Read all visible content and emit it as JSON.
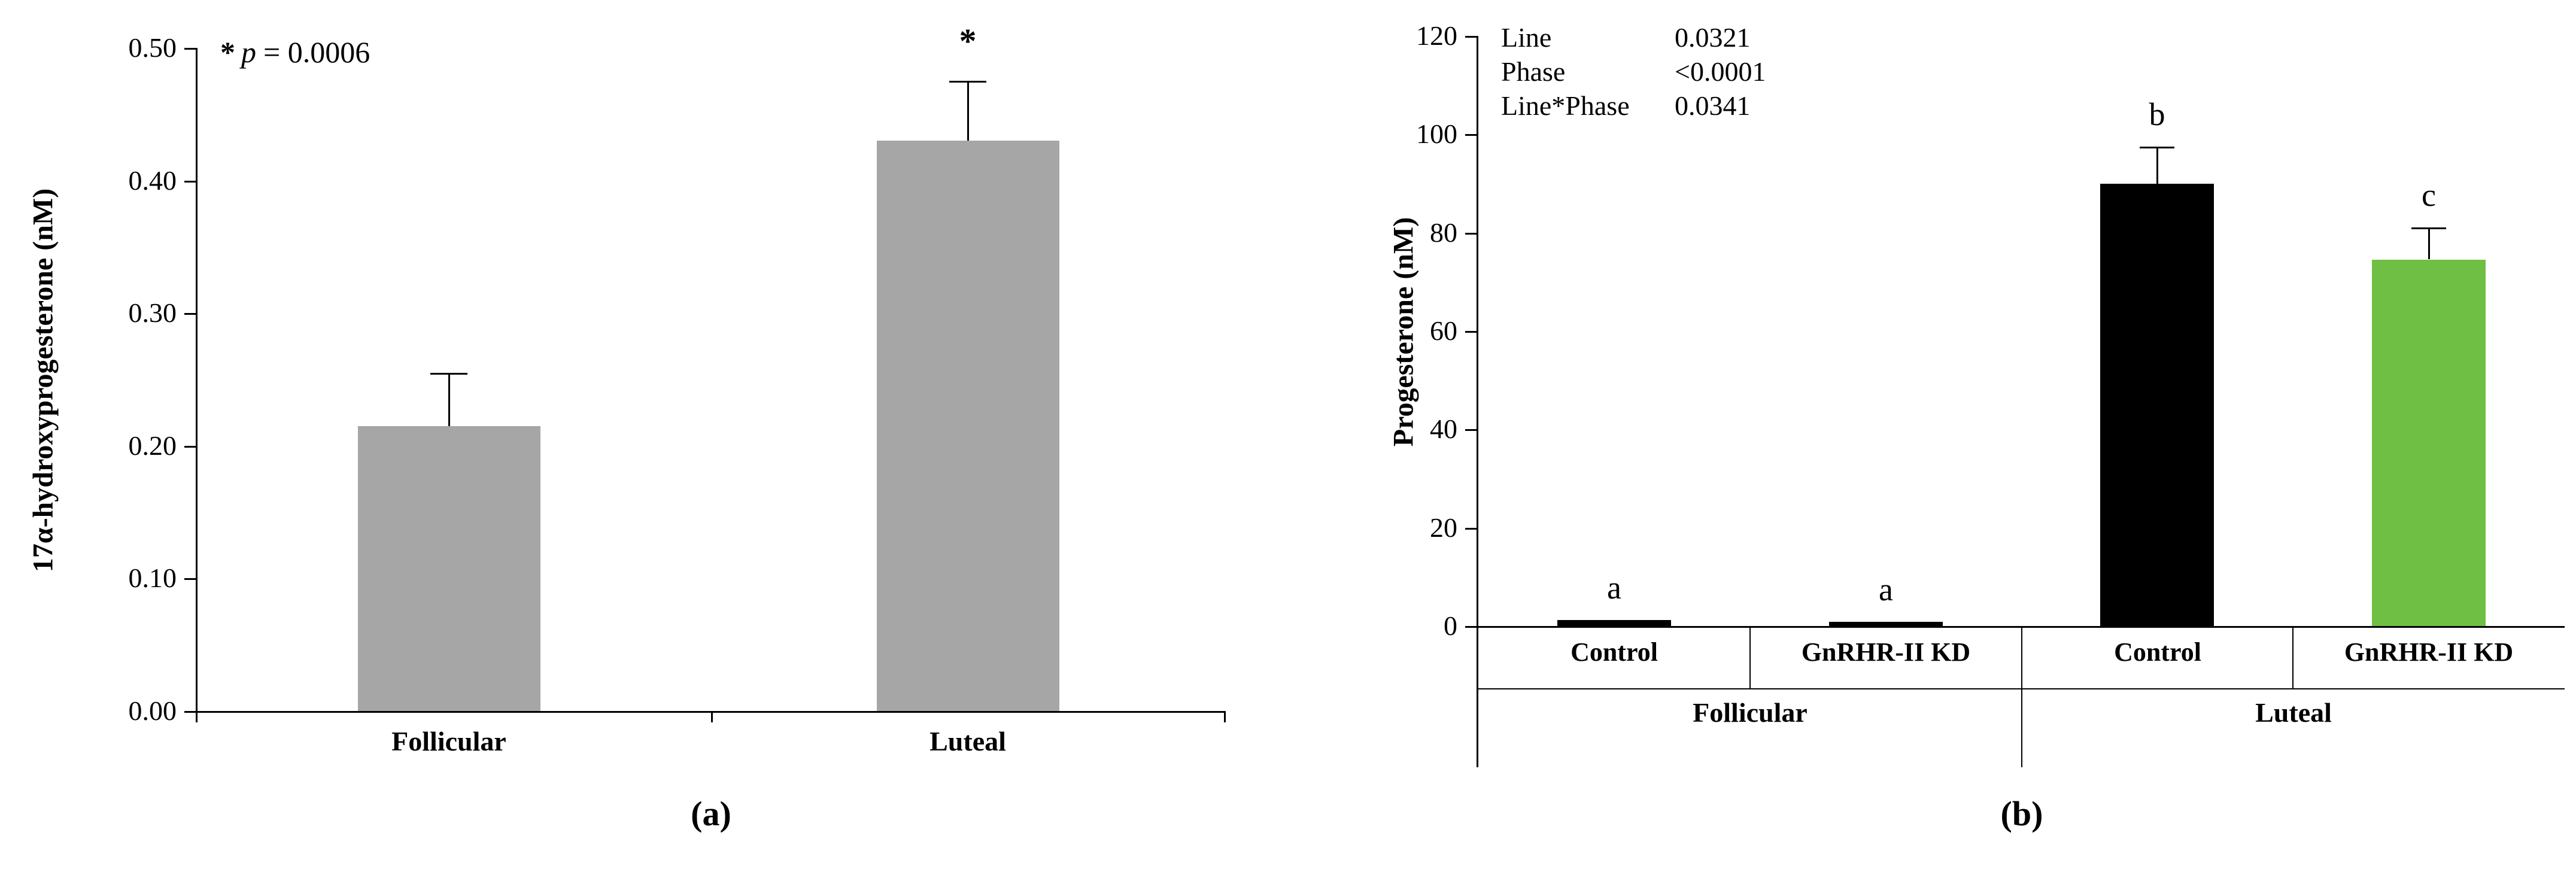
{
  "figure": {
    "background": "#ffffff",
    "panels": [
      {
        "label": "(a)"
      },
      {
        "label": "(b)"
      }
    ]
  },
  "chart_data": [
    {
      "type": "bar",
      "panel": "a",
      "title": "",
      "annotation": {
        "star": "*",
        "p_italic": "p",
        "equals": "= 0.0006"
      },
      "ylabel": "17α-hydroxyprogesterone (nM)",
      "xlabel": "",
      "ylim": [
        0,
        0.5
      ],
      "yticks": [
        0,
        0.1,
        0.2,
        0.3,
        0.4,
        0.5
      ],
      "ytick_labels": [
        "0.00",
        "0.10",
        "0.20",
        "0.30",
        "0.40",
        "0.50"
      ],
      "categories": [
        "Follicular",
        "Luteal"
      ],
      "values": [
        0.215,
        0.43
      ],
      "errors_up": [
        0.04,
        0.045
      ],
      "sig_labels": [
        "",
        "*"
      ],
      "bar_color": "#a6a6a6",
      "axis_color": "#000000",
      "grid": false,
      "legend": false
    },
    {
      "type": "bar",
      "panel": "b",
      "title": "",
      "stats_lines": [
        {
          "label": "Line",
          "value": "0.0321"
        },
        {
          "label": "Phase",
          "value": "<0.0001"
        },
        {
          "label": "Line*Phase",
          "value": "0.0341"
        }
      ],
      "ylabel": "Progesterone (nM)",
      "xlabel": "",
      "ylim": [
        0,
        120
      ],
      "yticks": [
        0,
        20,
        40,
        60,
        80,
        100,
        120
      ],
      "ytick_labels": [
        "0",
        "20",
        "40",
        "60",
        "80",
        "100",
        "120"
      ],
      "categories": [
        "Control",
        "GnRHR-II KD",
        "Control",
        "GnRHR-II KD"
      ],
      "group_labels": [
        "Follicular",
        "Luteal"
      ],
      "values": [
        1.2,
        0.8,
        90,
        74.5
      ],
      "errors_up": [
        0,
        0,
        7.5,
        6.5
      ],
      "sig_labels": [
        "a",
        "a",
        "b",
        "c"
      ],
      "bar_colors": [
        "#000000",
        "#000000",
        "#000000",
        "#6fbf44"
      ],
      "axis_color": "#000000",
      "grid": false,
      "legend": false
    }
  ]
}
